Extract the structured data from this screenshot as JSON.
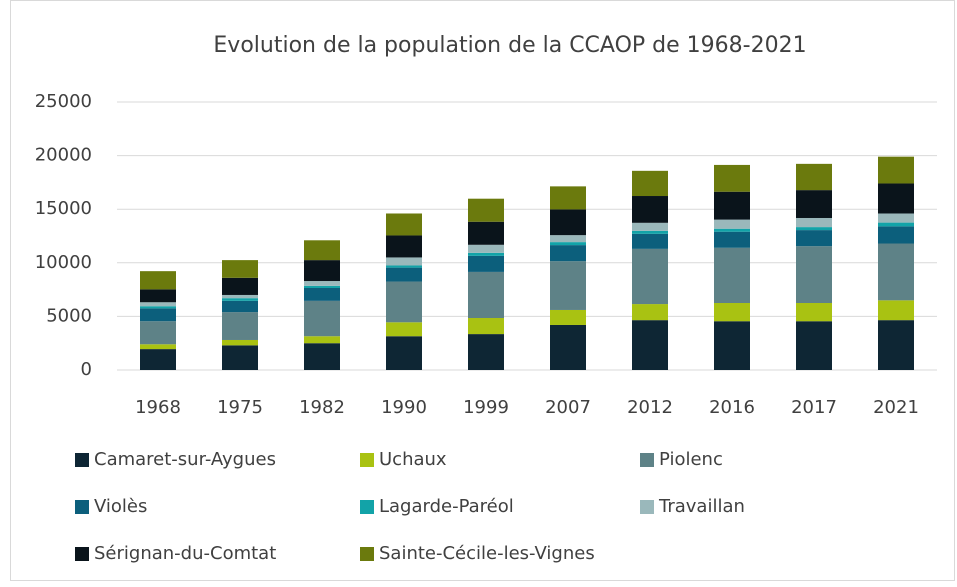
{
  "chart_data": {
    "type": "bar",
    "stacked": true,
    "title": "Evolution de la population de la CCAOP de 1968-2021",
    "categories": [
      "1968",
      "1975",
      "1982",
      "1990",
      "1999",
      "2007",
      "2012",
      "2016",
      "2017",
      "2021"
    ],
    "series": [
      {
        "name": "Camaret-sur-Aygues",
        "color": "#0e2634",
        "values": [
          1950,
          2300,
          2500,
          3150,
          3350,
          4200,
          4650,
          4550,
          4550,
          4650
        ]
      },
      {
        "name": "Uchaux",
        "color": "#a9c212",
        "values": [
          450,
          500,
          650,
          1300,
          1500,
          1400,
          1500,
          1700,
          1700,
          1850
        ]
      },
      {
        "name": "Piolenc",
        "color": "#5e8287",
        "values": [
          2150,
          2600,
          3300,
          3800,
          4300,
          4550,
          5150,
          5150,
          5300,
          5300
        ]
      },
      {
        "name": "Violès",
        "color": "#0c5f7c",
        "values": [
          1200,
          1050,
          1200,
          1300,
          1500,
          1500,
          1400,
          1500,
          1500,
          1600
        ]
      },
      {
        "name": "Lagarde-Paréol",
        "color": "#12a3a8",
        "values": [
          200,
          250,
          200,
          200,
          280,
          280,
          280,
          280,
          280,
          350
        ]
      },
      {
        "name": "Travaillan",
        "color": "#9ab8bb",
        "values": [
          370,
          300,
          450,
          750,
          750,
          650,
          750,
          850,
          850,
          850
        ]
      },
      {
        "name": "Sérignan-du-Comtat",
        "color": "#0a141b",
        "values": [
          1200,
          1600,
          1950,
          2050,
          2150,
          2400,
          2500,
          2600,
          2600,
          2800
        ]
      },
      {
        "name": "Sainte-Cécile-les-Vignes",
        "color": "#6b7a0d",
        "values": [
          1700,
          1650,
          1850,
          2050,
          2150,
          2150,
          2350,
          2500,
          2450,
          2500
        ]
      }
    ],
    "ylim": [
      0,
      25000
    ],
    "yticks": [
      0,
      5000,
      10000,
      15000,
      20000,
      25000
    ],
    "grid": true,
    "legend": "bottom"
  }
}
